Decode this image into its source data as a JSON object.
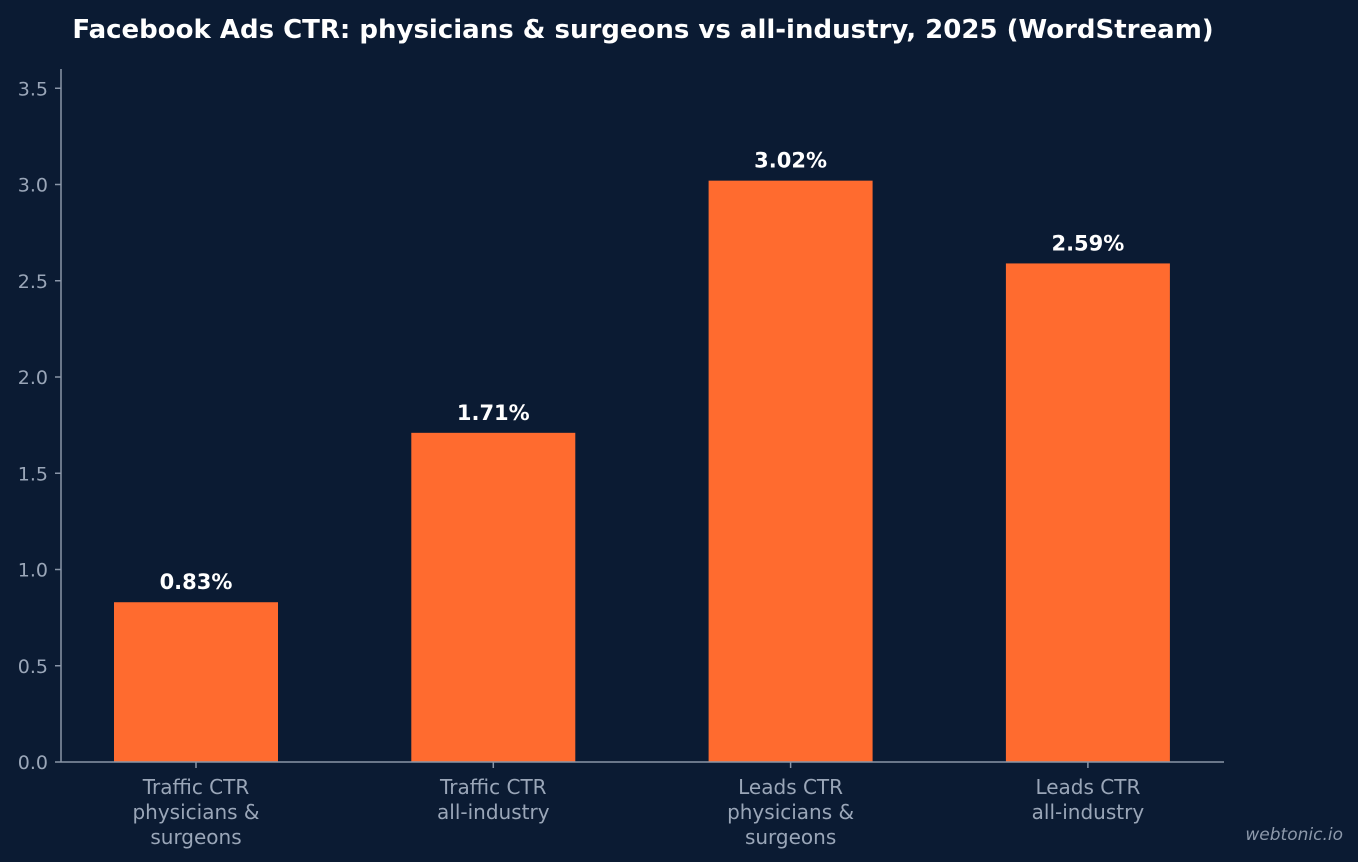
{
  "chart_data": {
    "type": "bar",
    "title": "Facebook Ads CTR: physicians & surgeons vs all-industry, 2025 (WordStream)",
    "categories": [
      [
        "Traffic CTR",
        "physicians &",
        "surgeons"
      ],
      [
        "Traffic CTR",
        "all-industry"
      ],
      [
        "Leads CTR",
        "physicians &",
        "surgeons"
      ],
      [
        "Leads CTR",
        "all-industry"
      ]
    ],
    "values": [
      0.83,
      1.71,
      3.02,
      2.59
    ],
    "data_labels": [
      "0.83%",
      "1.71%",
      "3.02%",
      "2.59%"
    ],
    "yticks": [
      "0.0",
      "0.5",
      "1.0",
      "1.5",
      "2.0",
      "2.5",
      "3.0",
      "3.5"
    ],
    "ytick_values": [
      0,
      0.5,
      1.0,
      1.5,
      2.0,
      2.5,
      3.0,
      3.5
    ],
    "ylim": [
      0,
      3.6
    ],
    "xlabel": "",
    "ylabel": "",
    "grid": false,
    "legend": "none",
    "bar_color": "#ff6b2f"
  },
  "watermark": "webtonic.io"
}
